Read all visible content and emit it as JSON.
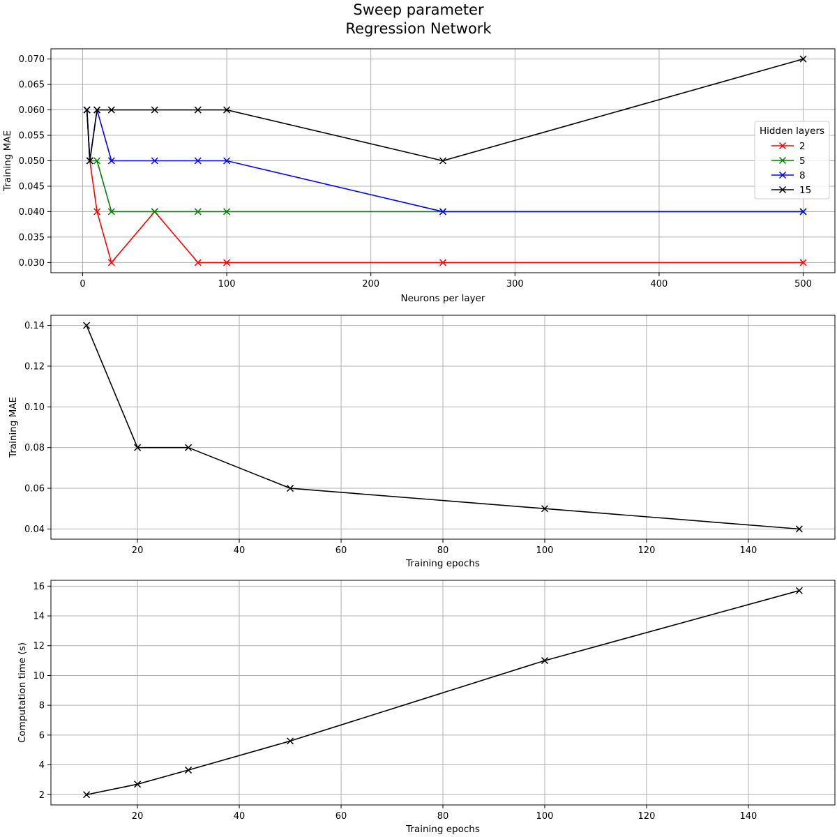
{
  "figure": {
    "title_line1": "Sweep parameter",
    "title_line2": "Regression Network"
  },
  "chart_data": [
    {
      "type": "line",
      "xlabel": "Neurons per layer",
      "ylabel": "Training MAE",
      "xlim": [
        -22,
        522
      ],
      "ylim": [
        0.028,
        0.072
      ],
      "xticks": [
        0,
        100,
        200,
        300,
        400,
        500
      ],
      "yticks": [
        0.03,
        0.035,
        0.04,
        0.045,
        0.05,
        0.055,
        0.06,
        0.065,
        0.07
      ],
      "ytick_decimals": 3,
      "grid": true,
      "marker": "x",
      "legend": {
        "title": "Hidden layers",
        "placement": "center-right"
      },
      "series": [
        {
          "name": "2",
          "color": "#ff0000",
          "x": [
            3,
            5,
            10,
            20,
            50,
            80,
            100,
            250,
            500
          ],
          "y": [
            0.06,
            0.05,
            0.04,
            0.03,
            0.04,
            0.03,
            0.03,
            0.03,
            0.03
          ]
        },
        {
          "name": "5",
          "color": "#008000",
          "x": [
            3,
            5,
            10,
            20,
            50,
            80,
            100,
            250,
            500
          ],
          "y": [
            0.06,
            0.05,
            0.05,
            0.04,
            0.04,
            0.04,
            0.04,
            0.04,
            0.04
          ]
        },
        {
          "name": "8",
          "color": "#0000ff",
          "x": [
            3,
            5,
            10,
            20,
            50,
            80,
            100,
            250,
            500
          ],
          "y": [
            0.06,
            0.05,
            0.06,
            0.05,
            0.05,
            0.05,
            0.05,
            0.04,
            0.04
          ]
        },
        {
          "name": "15",
          "color": "#000000",
          "x": [
            3,
            5,
            10,
            20,
            50,
            80,
            100,
            250,
            500
          ],
          "y": [
            0.06,
            0.05,
            0.06,
            0.06,
            0.06,
            0.06,
            0.06,
            0.05,
            0.07
          ]
        }
      ]
    },
    {
      "type": "line",
      "xlabel": "Training epochs",
      "ylabel": "Training MAE",
      "xlim": [
        3,
        157
      ],
      "ylim": [
        0.035,
        0.145
      ],
      "xticks": [
        20,
        40,
        60,
        80,
        100,
        120,
        140
      ],
      "yticks": [
        0.04,
        0.06,
        0.08,
        0.1,
        0.12,
        0.14
      ],
      "ytick_decimals": 2,
      "grid": true,
      "marker": "x",
      "series": [
        {
          "color": "#000000",
          "x": [
            10,
            20,
            30,
            50,
            100,
            150
          ],
          "y": [
            0.14,
            0.08,
            0.08,
            0.06,
            0.05,
            0.04
          ]
        }
      ]
    },
    {
      "type": "line",
      "xlabel": "Training epochs",
      "ylabel": "Computation time (s)",
      "xlim": [
        3,
        157
      ],
      "ylim": [
        1.31,
        16.39
      ],
      "xticks": [
        20,
        40,
        60,
        80,
        100,
        120,
        140
      ],
      "yticks": [
        2,
        4,
        6,
        8,
        10,
        12,
        14,
        16
      ],
      "ytick_decimals": 0,
      "grid": true,
      "marker": "x",
      "series": [
        {
          "color": "#000000",
          "x": [
            10,
            20,
            30,
            50,
            100,
            150
          ],
          "y": [
            2.0,
            2.7,
            3.65,
            5.6,
            11.0,
            15.7
          ]
        }
      ]
    }
  ]
}
